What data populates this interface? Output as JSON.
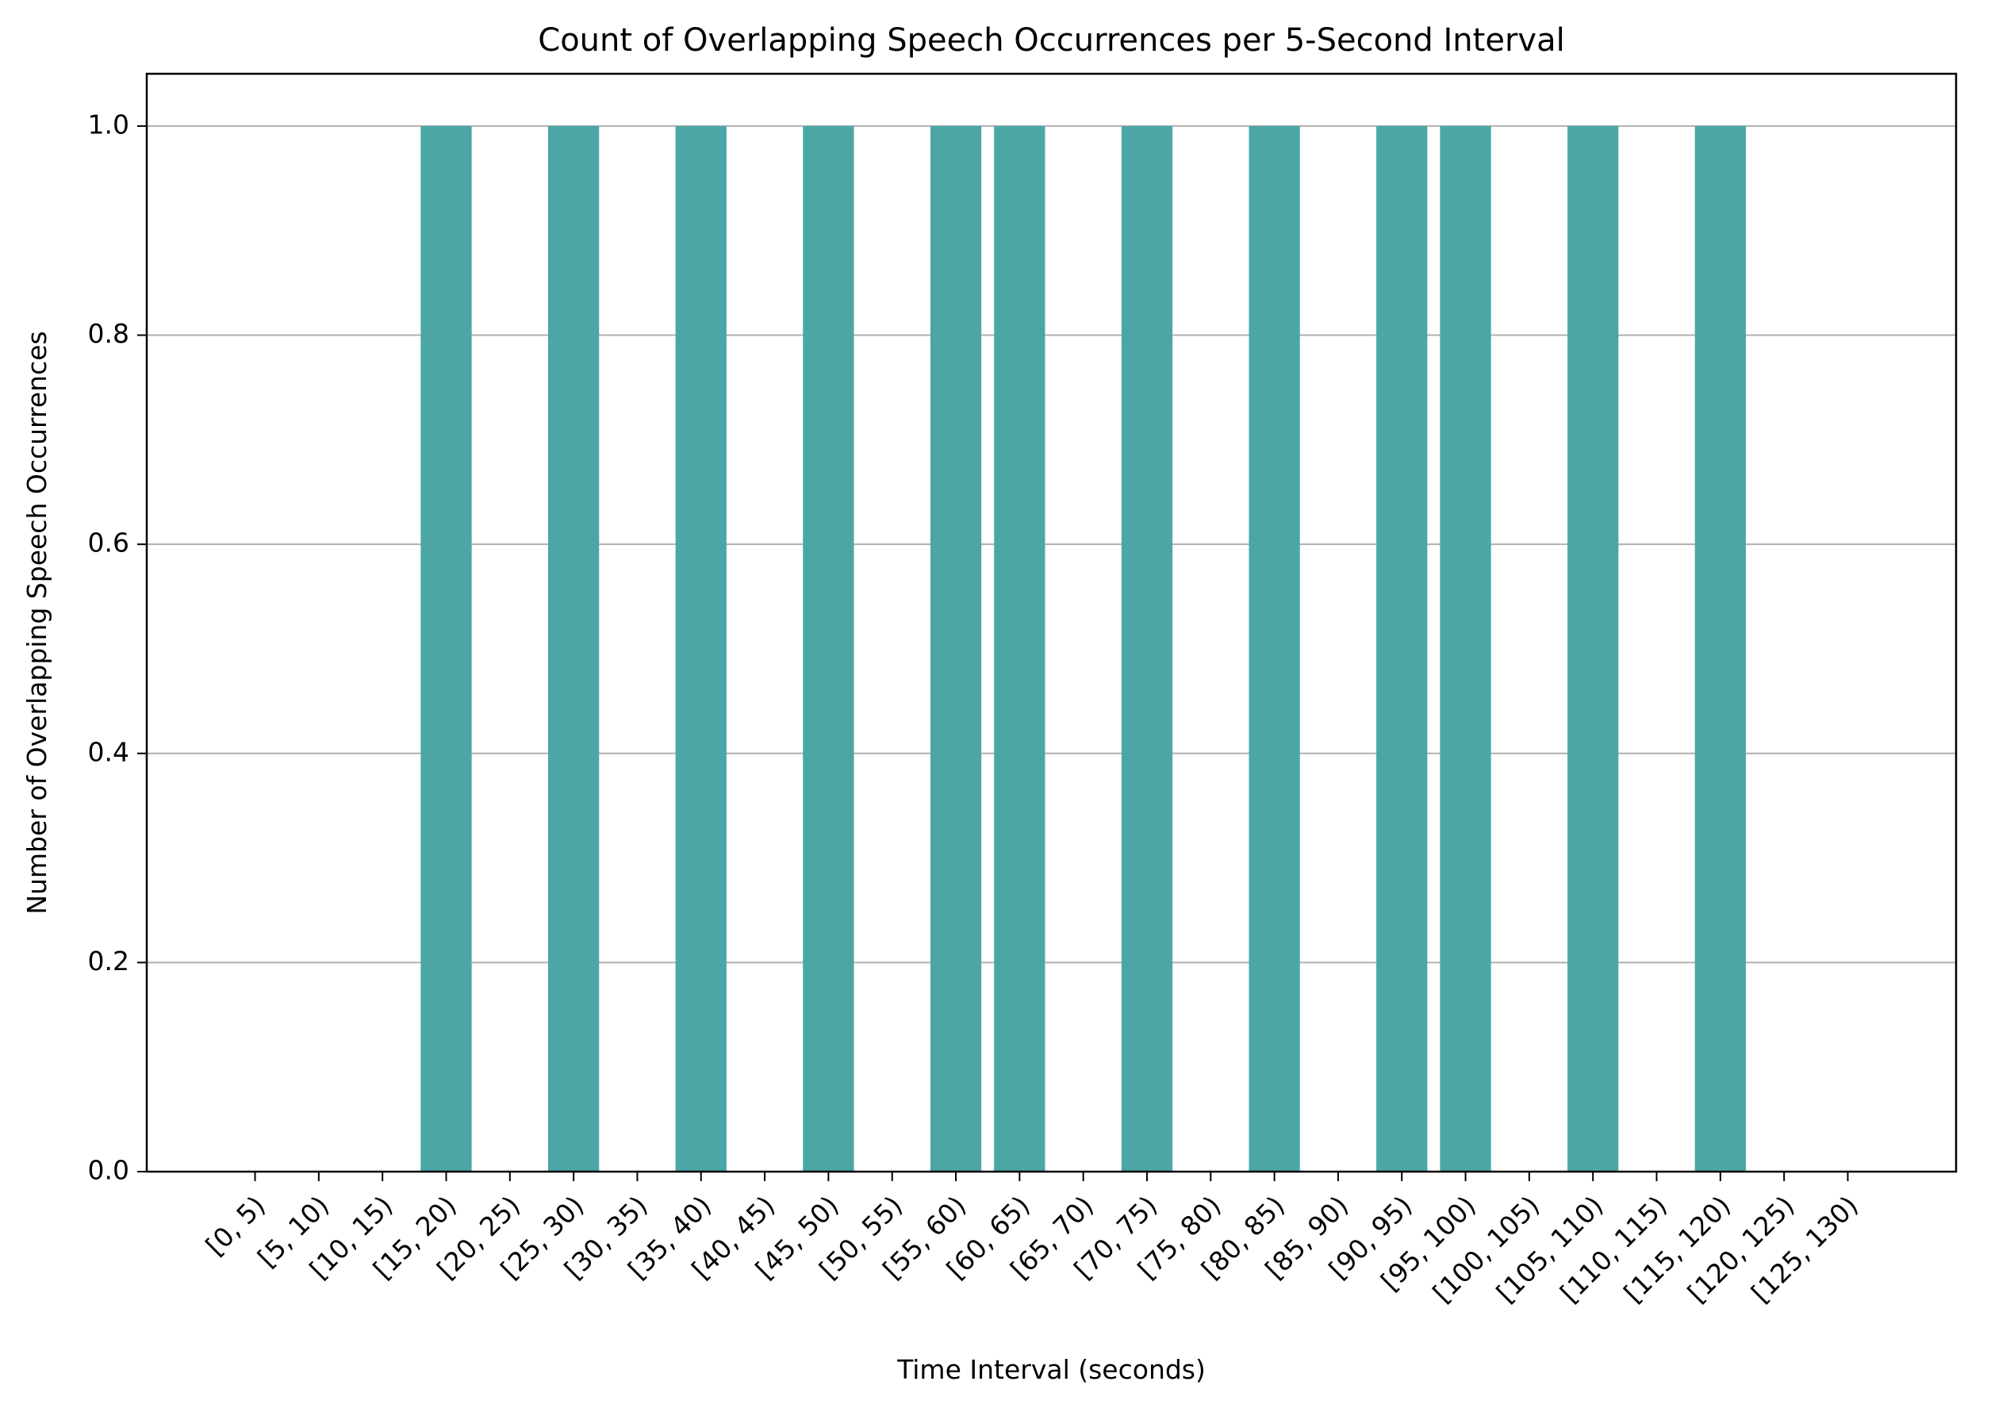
{
  "chart_data": {
    "type": "bar",
    "title": "Count of Overlapping Speech Occurrences per 5-Second Interval",
    "xlabel": "Time Interval (seconds)",
    "ylabel": "Number of Overlapping Speech Occurrences",
    "categories": [
      "[0, 5)",
      "[5, 10)",
      "[10, 15)",
      "[15, 20)",
      "[20, 25)",
      "[25, 30)",
      "[30, 35)",
      "[35, 40)",
      "[40, 45)",
      "[45, 50)",
      "[50, 55)",
      "[55, 60)",
      "[60, 65)",
      "[65, 70)",
      "[70, 75)",
      "[75, 80)",
      "[80, 85)",
      "[85, 90)",
      "[90, 95)",
      "[95, 100)",
      "[100, 105)",
      "[105, 110)",
      "[110, 115)",
      "[115, 120)",
      "[120, 125)",
      "[125, 130)"
    ],
    "values": [
      0,
      0,
      0,
      1,
      0,
      1,
      0,
      1,
      0,
      1,
      0,
      1,
      1,
      0,
      1,
      0,
      1,
      0,
      1,
      1,
      0,
      1,
      0,
      1,
      0,
      0
    ],
    "ylim": [
      0,
      1.05
    ],
    "yticks": [
      0.0,
      0.2,
      0.4,
      0.6,
      0.8,
      1.0
    ],
    "ytick_labels": [
      "0.0",
      "0.2",
      "0.4",
      "0.6",
      "0.8",
      "1.0"
    ],
    "grid": "y",
    "bar_color": "#4ca6a6",
    "grid_color": "#b0b0b0",
    "axis_color": "#000000"
  }
}
